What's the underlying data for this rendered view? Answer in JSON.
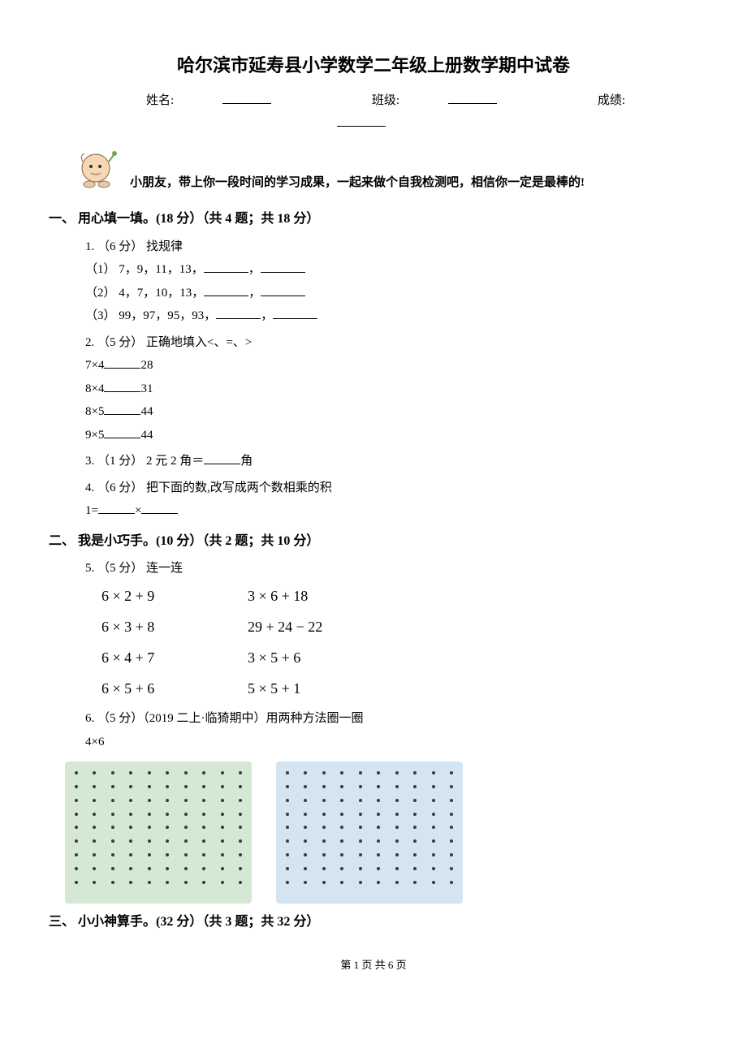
{
  "title": "哈尔滨市延寿县小学数学二年级上册数学期中试卷",
  "fields": {
    "name": "姓名:",
    "class": "班级:",
    "score": "成绩:"
  },
  "intro": "小朋友，带上你一段时间的学习成果，一起来做个自我检测吧，相信你一定是最棒的!",
  "sections": {
    "s1": "一、 用心填一填。(18 分）（共 4 题；共 18 分）",
    "s2": "二、 我是小巧手。(10 分）（共 2 题；共 10 分）",
    "s3": "三、 小小神算手。(32 分）（共 3 题；共 32 分）"
  },
  "q1": {
    "head": "1.  （6 分） 找规律",
    "a": "（1） 7，9，11，13，",
    "b": "（2） 4，7，10，13，",
    "c": "（3） 99，97，95，93，",
    "sep": "，"
  },
  "q2": {
    "head": "2.  （5 分） 正确地填入<、=、>",
    "a_l": "7×4",
    "a_r": "28",
    "b_l": "8×4",
    "b_r": "31",
    "c_l": "8×5",
    "c_r": "44",
    "d_l": "9×5",
    "d_r": "44"
  },
  "q3": {
    "head": "3.  （1 分） 2 元 2 角＝",
    "tail": "角"
  },
  "q4": {
    "head": "4.  （6 分） 把下面的数,改写成两个数相乘的积",
    "line": "1=",
    "times": "×"
  },
  "q5": {
    "head": "5.  （5 分） 连一连",
    "rows": [
      [
        "6 × 2 + 9",
        "3 × 6 + 18"
      ],
      [
        "6 × 3 + 8",
        "29 + 24 − 22"
      ],
      [
        "6 × 4 + 7",
        "3 × 5 + 6"
      ],
      [
        "6 × 5 + 6",
        "5 × 5 + 1"
      ]
    ]
  },
  "q6": {
    "head": "6.  （5 分）（2019 二上·临猗期中）用两种方法圈一圈",
    "expr": "4×6",
    "grids": [
      {
        "rows": 9,
        "cols": 10,
        "bg": "#d5e8d4"
      },
      {
        "rows": 9,
        "cols": 10,
        "bg": "#d4e4f0"
      }
    ]
  },
  "footer": "第 1 页 共 6 页",
  "icon": {
    "face": "#f6d7b6",
    "outline": "#9a7a55",
    "accent": "#6aa84f"
  }
}
